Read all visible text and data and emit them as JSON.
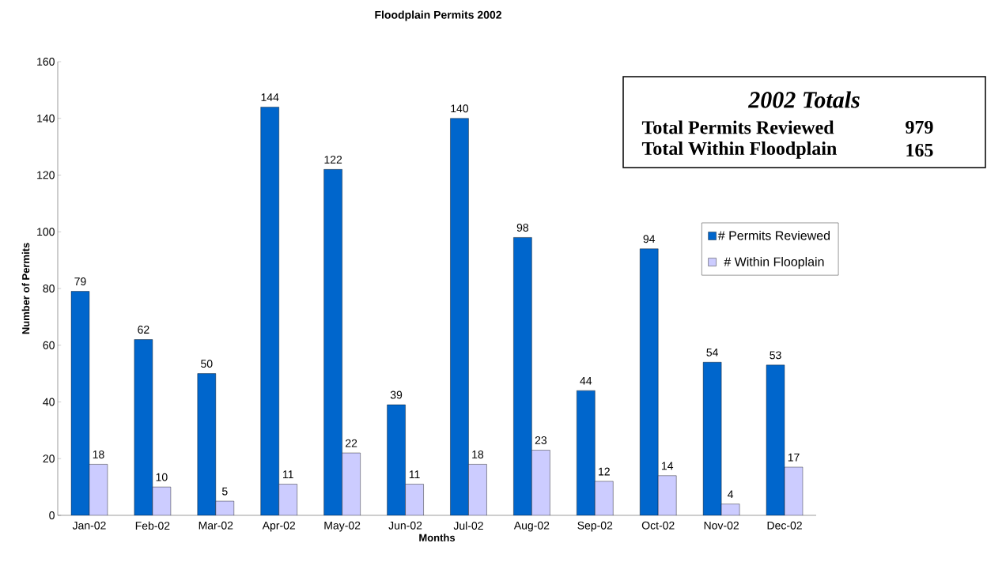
{
  "chart_data": {
    "type": "bar",
    "title": "Floodplain Permits 2002",
    "xlabel": "Months",
    "ylabel": "Number of Permits",
    "categories": [
      "Jan-02",
      "Feb-02",
      "Mar-02",
      "Apr-02",
      "May-02",
      "Jun-02",
      "Jul-02",
      "Aug-02",
      "Sep-02",
      "Oct-02",
      "Nov-02",
      "Dec-02"
    ],
    "series": [
      {
        "name": "# Permits Reviewed",
        "color": "#0066cc",
        "values": [
          79,
          62,
          50,
          144,
          122,
          39,
          140,
          98,
          44,
          94,
          54,
          53
        ]
      },
      {
        "name": "# Within Flooplain",
        "color": "#ccccff",
        "values": [
          18,
          10,
          5,
          11,
          22,
          11,
          18,
          23,
          12,
          14,
          4,
          17
        ]
      }
    ],
    "ylim": [
      0,
      160
    ],
    "yticks": [
      0,
      20,
      40,
      60,
      80,
      100,
      120,
      140,
      160
    ],
    "data_labels": true,
    "grid": false,
    "legend": "right",
    "annotations": [
      "2002 Totals",
      "Total Permits Reviewed",
      "979",
      "Total Within Floodplain",
      "165"
    ]
  }
}
